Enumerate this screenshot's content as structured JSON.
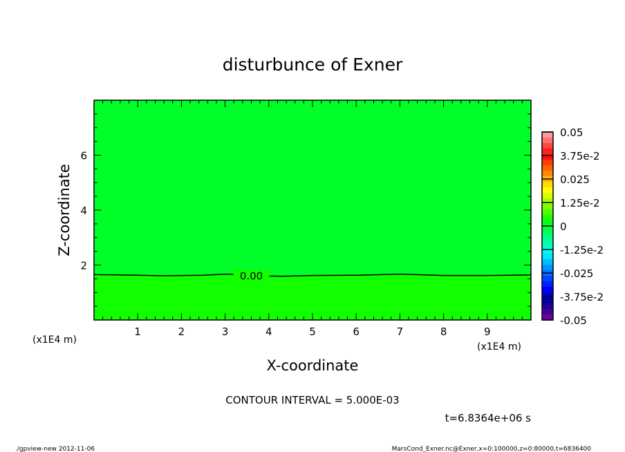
{
  "chart_data": {
    "type": "contour",
    "title": "disturbunce of Exner",
    "xlabel": "X-coordinate",
    "ylabel": "Z-coordinate",
    "x_unit_label": "(x1E4 m)",
    "y_unit_label": "(x1E4 m)",
    "xlim": [
      0,
      10
    ],
    "ylim": [
      0,
      8
    ],
    "x_ticks": [
      1,
      2,
      3,
      4,
      5,
      6,
      7,
      8,
      9
    ],
    "y_ticks": [
      2,
      4,
      6
    ],
    "contour_interval_label": "CONTOUR INTERVAL = 5.000E-03",
    "contour": {
      "level_label": "0.00",
      "label_x": 3.6,
      "x": [
        0,
        0.6,
        1,
        1.6,
        2.5,
        3,
        3.2,
        4,
        4.3,
        5,
        6,
        7,
        8,
        9,
        10
      ],
      "z": [
        1.65,
        1.64,
        1.63,
        1.61,
        1.63,
        1.67,
        1.66,
        1.6,
        1.59,
        1.62,
        1.63,
        1.67,
        1.62,
        1.62,
        1.64
      ]
    },
    "fill_above": "#00ff28",
    "fill_below": "#12ff00",
    "colorbar": {
      "range": [
        -0.05,
        0.05
      ],
      "tick_labels": [
        "0.05",
        "3.75e-2",
        "0.025",
        "1.25e-2",
        "0",
        "-1.25e-2",
        "-0.025",
        "-3.75e-2",
        "-0.05"
      ],
      "colors_top_to_bottom": [
        "#ff9a9a",
        "#ff7070",
        "#ff4646",
        "#ff2020",
        "#ff1010",
        "#ff3c00",
        "#ff6400",
        "#ff8c00",
        "#ffb400",
        "#ffdc00",
        "#ffff00",
        "#d6ff00",
        "#aaff00",
        "#7cff00",
        "#4cff00",
        "#20ff00",
        "#00ff20",
        "#00ff46",
        "#00ff6e",
        "#00ff96",
        "#00ffbe",
        "#00ffe6",
        "#00e6ff",
        "#00beff",
        "#0096ff",
        "#006eff",
        "#0046ff",
        "#0020ff",
        "#0000ff",
        "#0000d0",
        "#0000a0",
        "#1e0096",
        "#460096",
        "#6e00a0"
      ]
    },
    "time_label": "t=6.8364e+06 s"
  },
  "footer": {
    "left": "./gpview-new  2012-11-06",
    "right": "MarsCond_Exner.nc@Exner,x=0:100000,z=0:80000,t=6836400"
  }
}
